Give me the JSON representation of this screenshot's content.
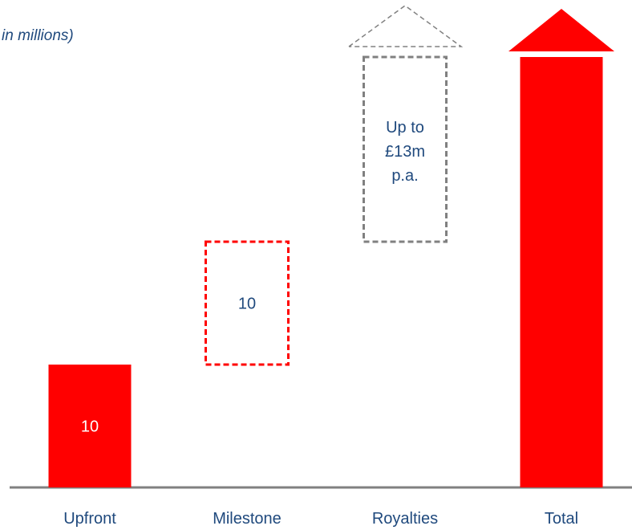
{
  "chart_data": {
    "type": "bar",
    "subtype": "waterfall",
    "unit_note": "in millions)",
    "categories": [
      "Upfront",
      "Milestone",
      "Royalties",
      "Total"
    ],
    "bars": [
      {
        "category": "Upfront",
        "value": 10,
        "label": "10",
        "style": "solid",
        "color": "#ff0000"
      },
      {
        "category": "Milestone",
        "value": 10,
        "label": "10",
        "style": "dashed",
        "color": "#ff0000",
        "potential": true
      },
      {
        "category": "Royalties",
        "value": null,
        "label": "Up to\n£13m\np.a.",
        "label_lines": [
          "Up to",
          "£13m",
          "p.a."
        ],
        "style": "dashed",
        "color": "#808080",
        "potential": true,
        "open_ended": true
      },
      {
        "category": "Total",
        "value": null,
        "label": "",
        "style": "solid",
        "color": "#ff0000",
        "open_ended": true
      }
    ],
    "grid": false,
    "legend": "none"
  },
  "colors": {
    "accent": "#ff0000",
    "dashed_grey": "#808080",
    "text": "#1f497d",
    "baseline": "#808080"
  }
}
